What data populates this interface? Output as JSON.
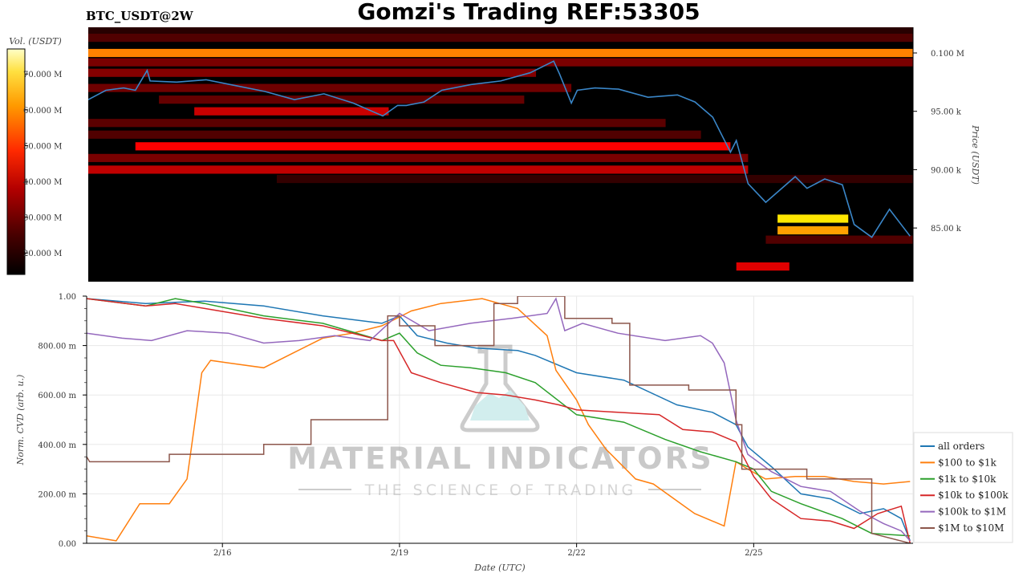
{
  "header": {
    "title": "Gomzi's Trading REF:53305",
    "symbol": "BTC_USDT@2W"
  },
  "watermark": {
    "brand": "MATERIAL INDICATORS",
    "tagline": "THE SCIENCE OF TRADING"
  },
  "chart_data": [
    {
      "type": "heatmap",
      "colorbar_label": "Vol. (USDT)",
      "colorbar_ticks": [
        "20.000 M",
        "30.000 M",
        "40.000 M",
        "50.000 M",
        "60.000 M",
        "70.000 M"
      ],
      "colorbar_range": [
        14,
        77
      ],
      "colormap": "hot",
      "y_axis_label": "Price (USDT)",
      "y_ticks": [
        {
          "value": 85000,
          "label": "85.00 k"
        },
        {
          "value": 90000,
          "label": "90.00 k"
        },
        {
          "value": 95000,
          "label": "95.00 k"
        },
        {
          "value": 100000,
          "label": "0.100 M"
        }
      ],
      "ylim": [
        80400,
        102200
      ],
      "xlim_days": [
        0,
        14
      ],
      "price_series": {
        "name": "price",
        "color": "#3a86c8",
        "x_days": [
          0,
          0.3,
          0.6,
          0.8,
          1.0,
          1.05,
          1.5,
          2.0,
          2.5,
          3.0,
          3.5,
          4.0,
          4.5,
          5.0,
          5.25,
          5.4,
          5.7,
          6.0,
          6.5,
          7.0,
          7.5,
          7.9,
          8.0,
          8.2,
          8.3,
          8.6,
          9.0,
          9.5,
          10.0,
          10.3,
          10.6,
          10.9,
          11.0,
          11.2,
          11.5,
          12.0,
          12.2,
          12.5,
          12.8,
          13.0,
          13.3,
          13.6,
          13.95
        ],
        "prices": [
          96000,
          96800,
          97000,
          96800,
          98500,
          97600,
          97500,
          97700,
          97200,
          96700,
          96000,
          96500,
          95700,
          94600,
          95500,
          95500,
          95800,
          96800,
          97300,
          97600,
          98300,
          99300,
          98200,
          95700,
          96800,
          97000,
          96900,
          96200,
          96400,
          95800,
          94500,
          91500,
          92500,
          88800,
          87200,
          89400,
          88400,
          89200,
          88700,
          85300,
          84200,
          86600,
          84300
        ]
      },
      "heat_bands": [
        {
          "price": 102000,
          "x_days": [
            0,
            14
          ],
          "volume": 18
        },
        {
          "price": 101300,
          "x_days": [
            0,
            14
          ],
          "volume": 22
        },
        {
          "price": 100000,
          "x_days": [
            0,
            14
          ],
          "volume": 52
        },
        {
          "price": 99200,
          "x_days": [
            0,
            14
          ],
          "volume": 26
        },
        {
          "price": 98300,
          "x_days": [
            0,
            7.6
          ],
          "volume": 27
        },
        {
          "price": 97000,
          "x_days": [
            0,
            8.2
          ],
          "volume": 25
        },
        {
          "price": 96000,
          "x_days": [
            1.2,
            7.4
          ],
          "volume": 24
        },
        {
          "price": 95000,
          "x_days": [
            1.8,
            5.1
          ],
          "volume": 34
        },
        {
          "price": 94000,
          "x_days": [
            0,
            9.8
          ],
          "volume": 23
        },
        {
          "price": 93000,
          "x_days": [
            0,
            10.4
          ],
          "volume": 22
        },
        {
          "price": 92000,
          "x_days": [
            0.8,
            10.9
          ],
          "volume": 39
        },
        {
          "price": 91000,
          "x_days": [
            0,
            11.2
          ],
          "volume": 26
        },
        {
          "price": 90000,
          "x_days": [
            0,
            11.2
          ],
          "volume": 33
        },
        {
          "price": 89200,
          "x_days": [
            3.2,
            14
          ],
          "volume": 19
        },
        {
          "price": 85800,
          "x_days": [
            11.7,
            12.9
          ],
          "volume": 62
        },
        {
          "price": 84800,
          "x_days": [
            11.7,
            12.9
          ],
          "volume": 55
        },
        {
          "price": 84000,
          "x_days": [
            11.5,
            14
          ],
          "volume": 22
        },
        {
          "price": 81700,
          "x_days": [
            11.0,
            11.9
          ],
          "volume": 36
        }
      ]
    },
    {
      "type": "line",
      "x_axis_label": "Date (UTC)",
      "y_axis_label": "Norm. CVD (arb. u.)",
      "x_ticks": [
        {
          "value": 2.3,
          "label": "2/16"
        },
        {
          "value": 5.3,
          "label": "2/19"
        },
        {
          "value": 8.3,
          "label": "2/22"
        },
        {
          "value": 11.3,
          "label": "2/25"
        }
      ],
      "y_ticks": [
        {
          "value": 0.0,
          "label": "0.00"
        },
        {
          "value": 0.2,
          "label": "200.00 m"
        },
        {
          "value": 0.4,
          "label": "400.00 m"
        },
        {
          "value": 0.6,
          "label": "600.00 m"
        },
        {
          "value": 0.8,
          "label": "800.00 m"
        },
        {
          "value": 1.0,
          "label": "1.00"
        }
      ],
      "xlim": [
        0,
        14
      ],
      "ylim": [
        0,
        1.0
      ],
      "grid": true,
      "legend_position": "lower-right",
      "series": [
        {
          "name": "all orders",
          "color": "#1f77b4",
          "x": [
            0,
            1,
            2,
            3,
            4,
            5,
            5.3,
            5.6,
            6.1,
            6.6,
            7.3,
            7.6,
            8.3,
            9.1,
            10,
            10.6,
            11.0,
            11.2,
            11.6,
            12.1,
            12.6,
            13.1,
            13.5,
            13.8,
            13.95
          ],
          "y": [
            0.99,
            0.97,
            0.98,
            0.96,
            0.92,
            0.89,
            0.92,
            0.84,
            0.81,
            0.79,
            0.78,
            0.76,
            0.69,
            0.66,
            0.56,
            0.53,
            0.48,
            0.39,
            0.31,
            0.2,
            0.18,
            0.12,
            0.14,
            0.1,
            0.01
          ]
        },
        {
          "name": "$100 to $1k",
          "color": "#ff7f0e",
          "x": [
            0,
            0.5,
            0.9,
            1.4,
            1.7,
            1.95,
            2.1,
            2.4,
            3.0,
            3.5,
            4.0,
            4.5,
            5.0,
            5.5,
            6.0,
            6.7,
            7.3,
            7.8,
            7.95,
            8.3,
            8.5,
            8.8,
            9.3,
            9.6,
            10.3,
            10.8,
            11.0,
            11.2,
            11.5,
            12.0,
            12.5,
            13.0,
            13.5,
            13.95
          ],
          "y": [
            0.03,
            0.01,
            0.16,
            0.16,
            0.26,
            0.69,
            0.74,
            0.73,
            0.71,
            0.77,
            0.83,
            0.85,
            0.88,
            0.94,
            0.97,
            0.99,
            0.95,
            0.84,
            0.7,
            0.58,
            0.48,
            0.38,
            0.26,
            0.24,
            0.12,
            0.07,
            0.33,
            0.3,
            0.26,
            0.27,
            0.27,
            0.25,
            0.24,
            0.25
          ]
        },
        {
          "name": "$1k to $10k",
          "color": "#2ca02c",
          "x": [
            0,
            1,
            1.5,
            2,
            3,
            4,
            5,
            5.3,
            5.6,
            6.0,
            6.5,
            7.1,
            7.6,
            8.3,
            9.1,
            9.8,
            10.4,
            11.0,
            11.3,
            11.6,
            12.1,
            12.8,
            13.3,
            13.95
          ],
          "y": [
            0.99,
            0.96,
            0.99,
            0.97,
            0.92,
            0.89,
            0.82,
            0.85,
            0.77,
            0.72,
            0.71,
            0.69,
            0.65,
            0.52,
            0.49,
            0.42,
            0.37,
            0.33,
            0.3,
            0.21,
            0.16,
            0.1,
            0.04,
            0.03
          ]
        },
        {
          "name": "$10k to $100k",
          "color": "#d62728",
          "x": [
            0,
            1,
            1.5,
            2,
            3,
            4,
            5,
            5.2,
            5.5,
            6.0,
            6.6,
            7.1,
            7.6,
            8.0,
            8.3,
            9.0,
            9.7,
            10.1,
            10.6,
            11.0,
            11.3,
            11.6,
            12.1,
            12.6,
            13.0,
            13.4,
            13.8,
            13.95
          ],
          "y": [
            0.99,
            0.96,
            0.97,
            0.95,
            0.91,
            0.88,
            0.82,
            0.82,
            0.69,
            0.65,
            0.61,
            0.6,
            0.58,
            0.56,
            0.54,
            0.53,
            0.52,
            0.46,
            0.45,
            0.41,
            0.27,
            0.18,
            0.1,
            0.09,
            0.06,
            0.12,
            0.15,
            0.0
          ]
        },
        {
          "name": "$100k to $1M",
          "color": "#9467bd",
          "x": [
            0,
            0.6,
            1.1,
            1.7,
            2.4,
            3.0,
            3.6,
            4.2,
            4.8,
            5.3,
            5.8,
            6.5,
            7.2,
            7.8,
            7.95,
            8.1,
            8.4,
            9.0,
            9.8,
            10.4,
            10.6,
            10.8,
            11.0,
            11.2,
            11.6,
            12.1,
            12.6,
            13.1,
            13.5,
            13.8,
            13.95
          ],
          "y": [
            0.85,
            0.83,
            0.82,
            0.86,
            0.85,
            0.81,
            0.82,
            0.84,
            0.82,
            0.93,
            0.86,
            0.89,
            0.91,
            0.93,
            0.99,
            0.86,
            0.89,
            0.85,
            0.82,
            0.84,
            0.81,
            0.73,
            0.5,
            0.36,
            0.29,
            0.23,
            0.21,
            0.13,
            0.08,
            0.05,
            0.01
          ]
        },
        {
          "name": "$1M to $10M",
          "color": "#8c564b",
          "x": [
            0,
            0.05,
            1.4,
            1.4,
            2.3,
            2.3,
            3.0,
            3.0,
            3.8,
            3.8,
            5.1,
            5.1,
            5.3,
            5.3,
            5.9,
            5.9,
            6.9,
            6.9,
            7.3,
            7.3,
            8.1,
            8.1,
            8.9,
            8.9,
            9.2,
            9.2,
            10.2,
            10.2,
            11.0,
            11.0,
            11.1,
            11.1,
            12.2,
            12.2,
            13.3,
            13.3,
            13.95
          ],
          "y": [
            0.35,
            0.33,
            0.33,
            0.36,
            0.36,
            0.36,
            0.36,
            0.4,
            0.4,
            0.5,
            0.5,
            0.92,
            0.92,
            0.88,
            0.88,
            0.8,
            0.8,
            0.97,
            0.97,
            1.0,
            1.0,
            0.91,
            0.91,
            0.89,
            0.89,
            0.64,
            0.64,
            0.62,
            0.62,
            0.48,
            0.48,
            0.3,
            0.3,
            0.26,
            0.26,
            0.04,
            0.0
          ]
        }
      ]
    }
  ]
}
